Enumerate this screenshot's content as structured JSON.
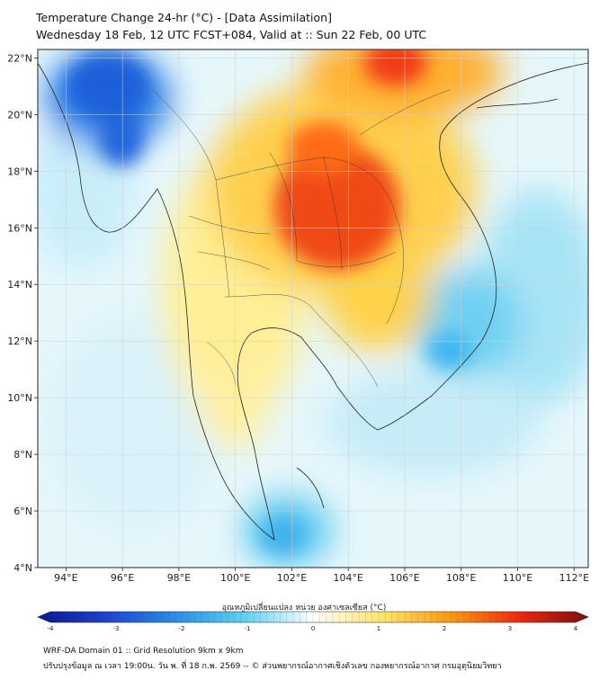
{
  "header": {
    "title": "Temperature Change 24-hr (°C) - [Data Assimilation]",
    "subtitle": "Wednesday 18 Feb, 12 UTC FCST+084, Valid at :: Sun 22 Feb, 00 UTC"
  },
  "map": {
    "lat_labels": [
      "22°N",
      "20°N",
      "18°N",
      "16°N",
      "14°N",
      "12°N",
      "10°N",
      "8°N",
      "6°N",
      "4°N"
    ],
    "lon_labels": [
      "94°E",
      "96°E",
      "98°E",
      "100°E",
      "102°E",
      "104°E",
      "106°E",
      "108°E",
      "110°E",
      "112°E"
    ],
    "lat_range": [
      4,
      22.3
    ],
    "lon_range": [
      93,
      112.5
    ]
  },
  "colorbar": {
    "label": "อุณหภูมิเปลี่ยนแปลง หน่วย องศาเซลเซียส (°C)",
    "ticks": [
      "-4",
      "-3",
      "-2",
      "-1",
      "0",
      "1",
      "2",
      "3",
      "4"
    ],
    "range": [
      -4,
      4
    ]
  },
  "footer": {
    "line1": "WRF-DA Domain 01 :: Grid Resolution 9km x 9km",
    "line2": "ปรับปรุงข้อมูล ณ เวลา 19:00น. วัน พ. ที่ 18 ก.พ. 2569 -- © ส่วนพยากรณ์อากาศเชิงตัวเลข กองพยากรณ์อากาศ กรมอุตุนิยมวิทยา"
  },
  "colors": {
    "cold_extreme": "#0a1a8f",
    "cold": "#1e6fdc",
    "cool": "#5ed2f2",
    "neutral": "#ffffff",
    "warm": "#ffe66a",
    "hot": "#ff9a10",
    "hotter": "#f0280e",
    "hot_extreme": "#7a0f0f"
  }
}
